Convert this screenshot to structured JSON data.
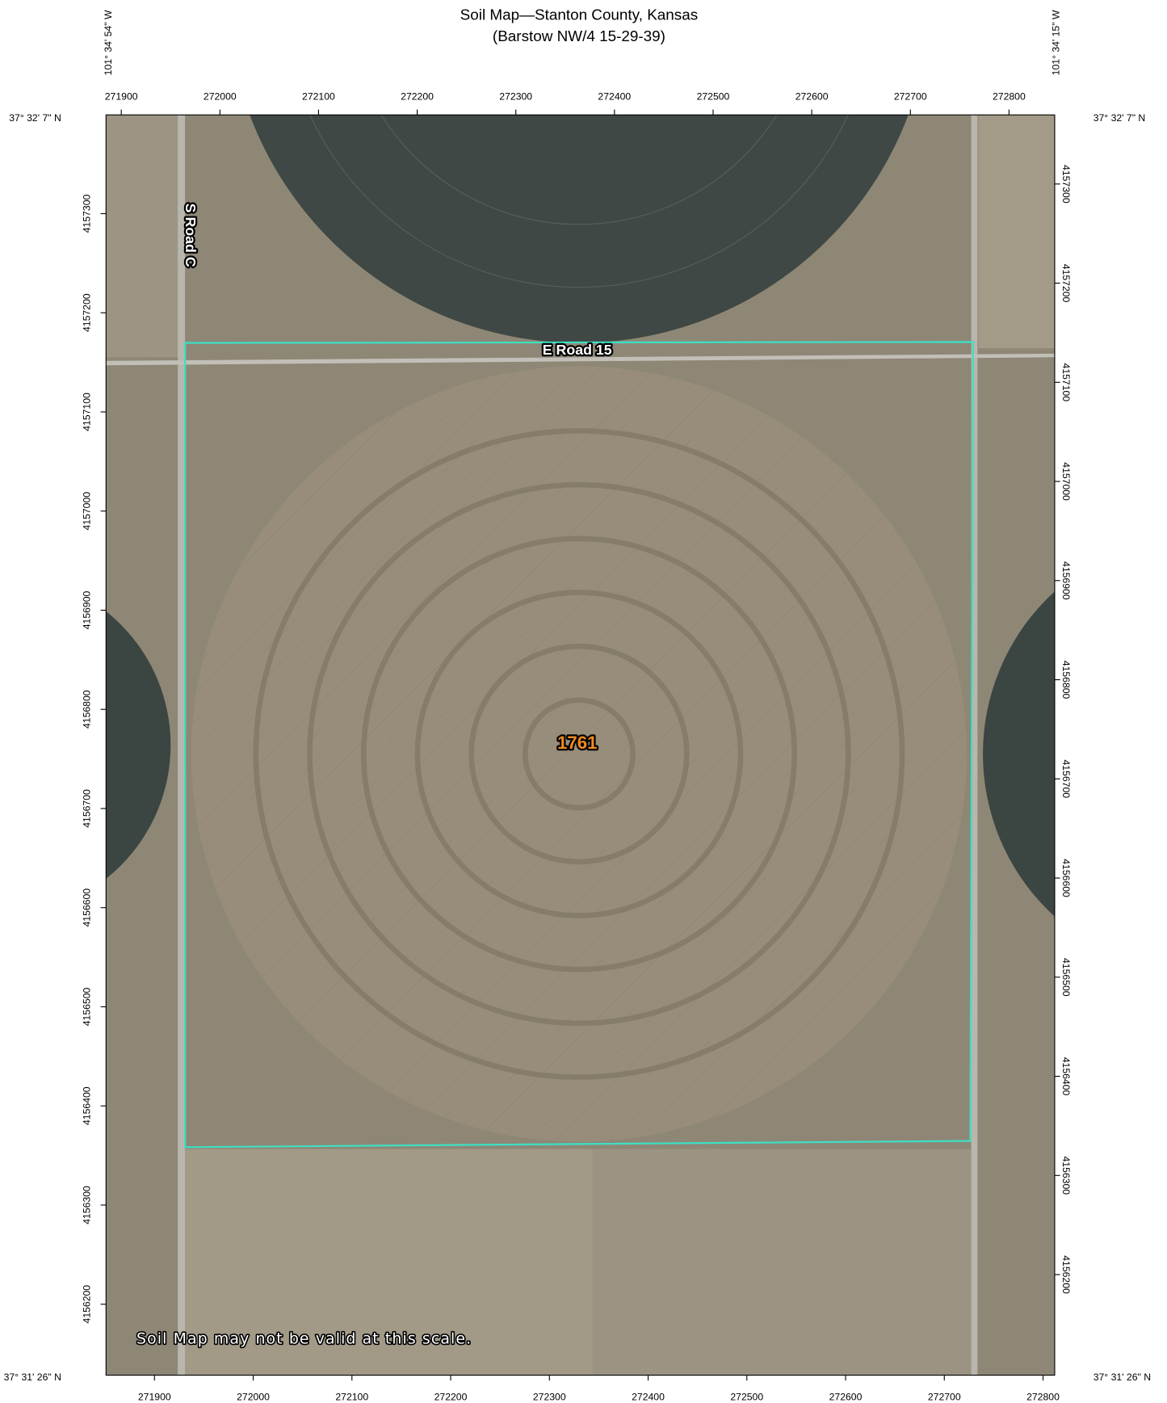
{
  "header": {
    "title": "Soil Map—Stanton County, Kansas",
    "subtitle": "(Barstow NW/4 15-29-39)"
  },
  "coordinates": {
    "top_left_longitude": "101° 34' 54\" W",
    "top_right_longitude": "101° 34' 15\" W",
    "top_left_latitude": "37° 32' 7\" N",
    "top_right_latitude": "37° 32' 7\" N",
    "bottom_left_latitude": "37° 31' 26\" N",
    "bottom_right_latitude": "37° 31' 26\" N",
    "eastings_top": [
      271900,
      272000,
      272100,
      272200,
      272300,
      272400,
      272500,
      272600,
      272700,
      272800
    ],
    "eastings_bottom": [
      271900,
      272000,
      272100,
      272200,
      272300,
      272400,
      272500,
      272600,
      272700,
      272800
    ],
    "northings_left": [
      4157300,
      4157200,
      4157100,
      4157000,
      4156900,
      4156800,
      4156700,
      4156600,
      4156500,
      4156400,
      4156300,
      4156200
    ],
    "northings_right": [
      4157300,
      4157200,
      4157100,
      4157000,
      4156900,
      4156800,
      4156700,
      4156600,
      4156500,
      4156400,
      4156300,
      4156200
    ]
  },
  "map": {
    "road_north_south": "S Road C",
    "road_east_west": "E Road 15",
    "map_unit": "1761",
    "notice": "Soil Map may not be valid at this scale."
  }
}
